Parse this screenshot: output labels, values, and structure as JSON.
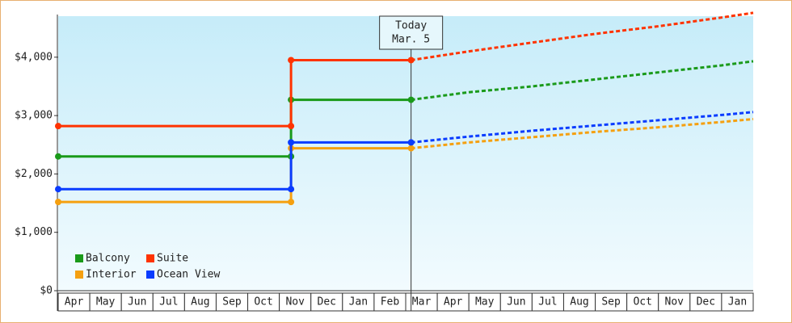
{
  "chart_data": {
    "type": "line",
    "categories": [
      "Apr",
      "May",
      "Jun",
      "Jul",
      "Aug",
      "Sep",
      "Oct",
      "Nov",
      "Dec",
      "Jan",
      "Feb",
      "Mar",
      "Apr",
      "May",
      "Jun",
      "Jul",
      "Aug",
      "Sep",
      "Oct",
      "Nov",
      "Dec",
      "Jan"
    ],
    "xlim": [
      0,
      22
    ],
    "x": [
      0,
      7.37,
      7.37,
      11.17
    ],
    "forecast_x": [
      11.17,
      13,
      15,
      17,
      19,
      21,
      22
    ],
    "ylim": [
      0,
      4800
    ],
    "yticks": [
      {
        "value": 0,
        "label": "$0"
      },
      {
        "value": 1000,
        "label": "$1,000"
      },
      {
        "value": 2000,
        "label": "$2,000"
      },
      {
        "value": 3000,
        "label": "$3,000"
      },
      {
        "value": 4000,
        "label": "$4,000"
      }
    ],
    "annotation": {
      "x": 11.17,
      "lines": [
        "Today",
        "Mar. 5"
      ]
    },
    "series": [
      {
        "name": "Balcony",
        "color": "#1a9a1a",
        "values": [
          2300,
          2300,
          3270,
          3270
        ],
        "forecast_values": [
          3270,
          3400,
          3500,
          3620,
          3740,
          3860,
          3930
        ]
      },
      {
        "name": "Suite",
        "color": "#ff3300",
        "values": [
          2820,
          2820,
          3950,
          3950
        ],
        "forecast_values": [
          3950,
          4100,
          4250,
          4400,
          4530,
          4680,
          4760
        ]
      },
      {
        "name": "Interior",
        "color": "#f5a010",
        "values": [
          1520,
          1520,
          2440,
          2440
        ],
        "forecast_values": [
          2440,
          2540,
          2630,
          2720,
          2800,
          2890,
          2940
        ]
      },
      {
        "name": "Ocean View",
        "color": "#0a3cff",
        "values": [
          1740,
          1740,
          2540,
          2540
        ],
        "forecast_values": [
          2540,
          2640,
          2740,
          2830,
          2920,
          3010,
          3060
        ]
      }
    ]
  }
}
